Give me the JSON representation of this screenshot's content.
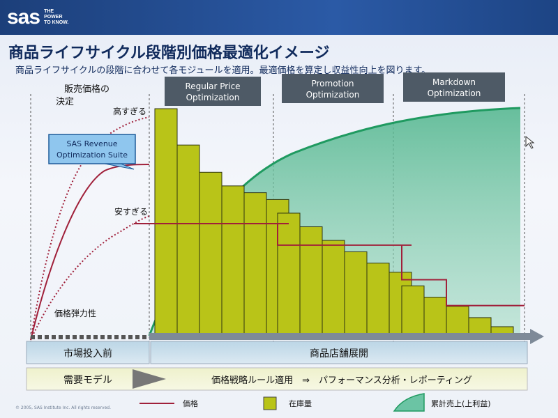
{
  "header": {
    "logo_text": "sas",
    "tagline": "THE\nPOWER\nTO KNOW."
  },
  "title": "商品ライフサイクル段階別価格最適化イメージ",
  "subtitle": "商品ライフサイクルの段階に合わせて各モジュールを適用。最適価格を算定し収益性向上を図ります。",
  "left_labels": {
    "decision": "販売価格の\n決定",
    "too_high": "高すぎる",
    "too_low": "安すぎる",
    "elasticity": "価格弾力性",
    "suite": "SAS Revenue\nOptimization Suite"
  },
  "modules": [
    {
      "name": "Regular Price\nOptimization"
    },
    {
      "name": "Promotion\nOptimization"
    },
    {
      "name": "Markdown\nOptimization"
    }
  ],
  "phases": {
    "pre_launch": "市場投入前",
    "in_store": "商品店舗展開"
  },
  "flow": {
    "demand_model": "需要モデル",
    "process": "価格戦略ルール適用　⇒　パフォーマンス分析・レポーティング"
  },
  "legend": {
    "price": "価格",
    "inventory": "在庫量",
    "cumulative": "累計売上(上利益)"
  },
  "colors": {
    "header": "#1c3f7a",
    "title": "#102a5c",
    "module_box": "#4e5a66",
    "bar_fill": "#b9c418",
    "price_line": "#a0203a",
    "cumulative_line": "#1f9a60",
    "cumulative_fill": "#6bc4a4",
    "callout": "#8fc6ee"
  },
  "copyright": "© 2005, SAS Institute Inc. All rights reserved.",
  "chart_data": {
    "type": "bar",
    "inventory": [
      100,
      84,
      72,
      66,
      63,
      60,
      54,
      48,
      42,
      37,
      32,
      28,
      22,
      17,
      13,
      8,
      4
    ],
    "price": [
      52,
      52,
      52,
      52,
      52,
      52,
      42,
      42,
      42,
      42,
      42,
      42,
      26,
      26,
      14,
      14,
      14
    ],
    "cumulative_sales_note": "rising curve"
  }
}
